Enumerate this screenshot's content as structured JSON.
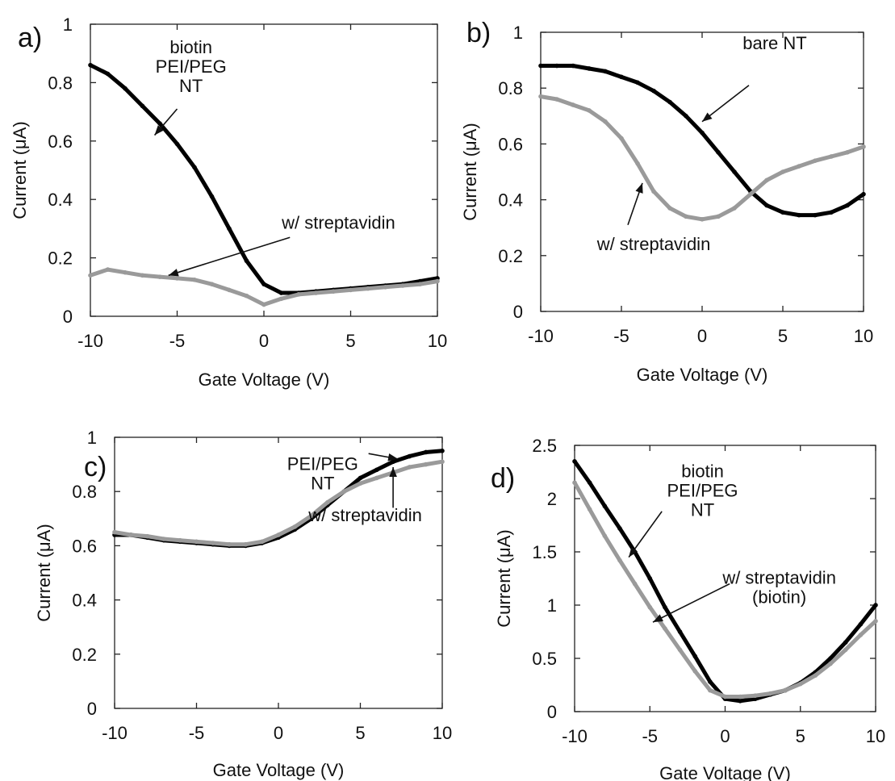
{
  "chart_data": [
    {
      "panel_label": "a)",
      "type": "line",
      "xlabel": "Gate Voltage (V)",
      "ylabel": "Current (μA)",
      "xlim": [
        -10,
        10
      ],
      "ylim": [
        0,
        1
      ],
      "xticks": [
        -10,
        -5,
        0,
        5,
        10
      ],
      "yticks": [
        0,
        0.2,
        0.4,
        0.6,
        0.8,
        1
      ],
      "ytick_labels": [
        "0",
        "0.2",
        "0.4",
        "0.6",
        "0.8",
        "1"
      ],
      "grid": false,
      "series": [
        {
          "color": "#000000",
          "x": [
            -10,
            -9,
            -8,
            -7,
            -6,
            -5,
            -4,
            -3,
            -2,
            -1,
            0,
            1,
            2,
            3,
            4,
            5,
            6,
            7,
            8,
            9,
            10
          ],
          "y": [
            0.86,
            0.83,
            0.78,
            0.72,
            0.66,
            0.59,
            0.51,
            0.41,
            0.3,
            0.19,
            0.11,
            0.08,
            0.08,
            0.085,
            0.09,
            0.095,
            0.1,
            0.105,
            0.11,
            0.12,
            0.13
          ]
        },
        {
          "color": "#9a9a9a",
          "x": [
            -10,
            -9,
            -8,
            -7,
            -6,
            -5,
            -4,
            -3,
            -2,
            -1,
            0,
            1,
            2,
            3,
            4,
            5,
            6,
            7,
            8,
            9,
            10
          ],
          "y": [
            0.14,
            0.16,
            0.15,
            0.14,
            0.135,
            0.13,
            0.125,
            0.11,
            0.09,
            0.07,
            0.04,
            0.06,
            0.075,
            0.08,
            0.085,
            0.09,
            0.095,
            0.1,
            0.105,
            0.11,
            0.12
          ]
        }
      ],
      "annotations": [
        {
          "lines": [
            "biotin",
            "PEI/PEG",
            "NT"
          ],
          "x": -4.2,
          "y": 0.9,
          "arrow_from": [
            -5.0,
            0.71
          ],
          "arrow_to": [
            -6.3,
            0.62
          ]
        },
        {
          "lines": [
            "w/ streptavidin"
          ],
          "x": 4.3,
          "y": 0.3,
          "arrow_from": [
            1.5,
            0.27
          ],
          "arrow_to": [
            -5.5,
            0.14
          ]
        }
      ]
    },
    {
      "panel_label": "b)",
      "type": "line",
      "xlabel": "Gate Voltage (V)",
      "ylabel": "Current (μA)",
      "xlim": [
        -10,
        10
      ],
      "ylim": [
        0,
        1
      ],
      "xticks": [
        -10,
        -5,
        0,
        5,
        10
      ],
      "yticks": [
        0,
        0.2,
        0.4,
        0.6,
        0.8,
        1
      ],
      "ytick_labels": [
        "0",
        "0.2",
        "0.4",
        "0.6",
        "0.8",
        "1"
      ],
      "grid": false,
      "series": [
        {
          "color": "#000000",
          "x": [
            -10,
            -9,
            -8,
            -7,
            -6,
            -5,
            -4,
            -3,
            -2,
            -1,
            0,
            1,
            2,
            3,
            4,
            5,
            6,
            7,
            8,
            9,
            10
          ],
          "y": [
            0.88,
            0.88,
            0.88,
            0.87,
            0.86,
            0.84,
            0.82,
            0.79,
            0.75,
            0.7,
            0.64,
            0.57,
            0.5,
            0.43,
            0.38,
            0.355,
            0.345,
            0.345,
            0.355,
            0.38,
            0.42
          ]
        },
        {
          "color": "#9a9a9a",
          "x": [
            -10,
            -9,
            -8,
            -7,
            -6,
            -5,
            -4,
            -3,
            -2,
            -1,
            0,
            1,
            2,
            3,
            4,
            5,
            6,
            7,
            8,
            9,
            10
          ],
          "y": [
            0.77,
            0.76,
            0.74,
            0.72,
            0.68,
            0.62,
            0.53,
            0.43,
            0.37,
            0.34,
            0.33,
            0.34,
            0.37,
            0.42,
            0.47,
            0.5,
            0.52,
            0.54,
            0.555,
            0.57,
            0.59
          ]
        }
      ],
      "annotations": [
        {
          "lines": [
            "bare NT"
          ],
          "x": 4.5,
          "y": 0.94,
          "arrow_from": [
            2.9,
            0.81
          ],
          "arrow_to": [
            0.0,
            0.68
          ]
        },
        {
          "lines": [
            "w/ streptavidin"
          ],
          "x": -3.0,
          "y": 0.22,
          "arrow_from": [
            -4.6,
            0.31
          ],
          "arrow_to": [
            -3.7,
            0.46
          ]
        }
      ]
    },
    {
      "panel_label": "c)",
      "type": "line",
      "xlabel": "Gate Voltage (V)",
      "ylabel": "Current (μA)",
      "xlim": [
        -10,
        10
      ],
      "ylim": [
        0,
        1
      ],
      "xticks": [
        -10,
        -5,
        0,
        5,
        10
      ],
      "yticks": [
        0,
        0.2,
        0.4,
        0.6,
        0.8,
        1
      ],
      "ytick_labels": [
        "0",
        "0.2",
        "0.4",
        "0.6",
        "0.8",
        "1"
      ],
      "grid": false,
      "series": [
        {
          "color": "#000000",
          "x": [
            -10,
            -9,
            -8,
            -7,
            -6,
            -5,
            -4,
            -3,
            -2,
            -1,
            0,
            1,
            2,
            3,
            4,
            5,
            6,
            7,
            8,
            9,
            10
          ],
          "y": [
            0.64,
            0.64,
            0.63,
            0.62,
            0.615,
            0.61,
            0.605,
            0.6,
            0.6,
            0.61,
            0.63,
            0.66,
            0.7,
            0.75,
            0.8,
            0.85,
            0.88,
            0.91,
            0.93,
            0.945,
            0.95
          ]
        },
        {
          "color": "#9a9a9a",
          "x": [
            -10,
            -9,
            -8,
            -7,
            -6,
            -5,
            -4,
            -3,
            -2,
            -1,
            0,
            1,
            2,
            3,
            4,
            5,
            6,
            7,
            8,
            9,
            10
          ],
          "y": [
            0.65,
            0.64,
            0.635,
            0.625,
            0.62,
            0.615,
            0.61,
            0.605,
            0.605,
            0.615,
            0.64,
            0.67,
            0.71,
            0.76,
            0.8,
            0.83,
            0.85,
            0.87,
            0.89,
            0.9,
            0.91
          ]
        }
      ],
      "annotations": [
        {
          "lines": [
            "PEI/PEG",
            "NT"
          ],
          "x": 2.7,
          "y": 0.88,
          "arrow_from": [
            5.5,
            0.94
          ],
          "arrow_to": [
            7.3,
            0.92
          ]
        },
        {
          "lines": [
            "w/ streptavidin"
          ],
          "x": 5.3,
          "y": 0.69,
          "arrow_from": [
            7.0,
            0.74
          ],
          "arrow_to": [
            7.0,
            0.89
          ]
        }
      ]
    },
    {
      "panel_label": "d)",
      "type": "line",
      "xlabel": "Gate Voltage (V)",
      "ylabel": "Current (μA)",
      "xlim": [
        -10,
        10
      ],
      "ylim": [
        0,
        2.5
      ],
      "xticks": [
        -10,
        -5,
        0,
        5,
        10
      ],
      "yticks": [
        0,
        0.5,
        1,
        1.5,
        2,
        2.5
      ],
      "ytick_labels": [
        "0",
        "0.5",
        "1",
        "1.5",
        "2",
        "2.5"
      ],
      "grid": false,
      "series": [
        {
          "color": "#000000",
          "x": [
            -10,
            -9,
            -8,
            -7,
            -6,
            -5,
            -4,
            -3,
            -2,
            -1,
            0,
            1,
            2,
            3,
            4,
            5,
            6,
            7,
            8,
            9,
            10
          ],
          "y": [
            2.35,
            2.15,
            1.93,
            1.72,
            1.5,
            1.25,
            0.98,
            0.75,
            0.52,
            0.28,
            0.12,
            0.1,
            0.12,
            0.16,
            0.2,
            0.27,
            0.37,
            0.5,
            0.65,
            0.82,
            1.0
          ]
        },
        {
          "color": "#9a9a9a",
          "x": [
            -10,
            -9,
            -8,
            -7,
            -6,
            -5,
            -4,
            -3,
            -2,
            -1,
            0,
            1,
            2,
            3,
            4,
            5,
            6,
            7,
            8,
            9,
            10
          ],
          "y": [
            2.15,
            1.9,
            1.65,
            1.42,
            1.2,
            0.98,
            0.78,
            0.58,
            0.38,
            0.2,
            0.14,
            0.14,
            0.15,
            0.17,
            0.2,
            0.26,
            0.34,
            0.45,
            0.58,
            0.72,
            0.85
          ]
        }
      ],
      "annotations": [
        {
          "lines": [
            "biotin",
            "PEI/PEG",
            "NT"
          ],
          "x": -1.5,
          "y": 2.2,
          "arrow_from": [
            -4.2,
            1.88
          ],
          "arrow_to": [
            -6.4,
            1.45
          ]
        },
        {
          "lines": [
            "w/ streptavidin",
            "(biotin)"
          ],
          "x": 3.6,
          "y": 1.2,
          "arrow_from": [
            0.3,
            1.2
          ],
          "arrow_to": [
            -4.8,
            0.84
          ]
        }
      ]
    }
  ]
}
